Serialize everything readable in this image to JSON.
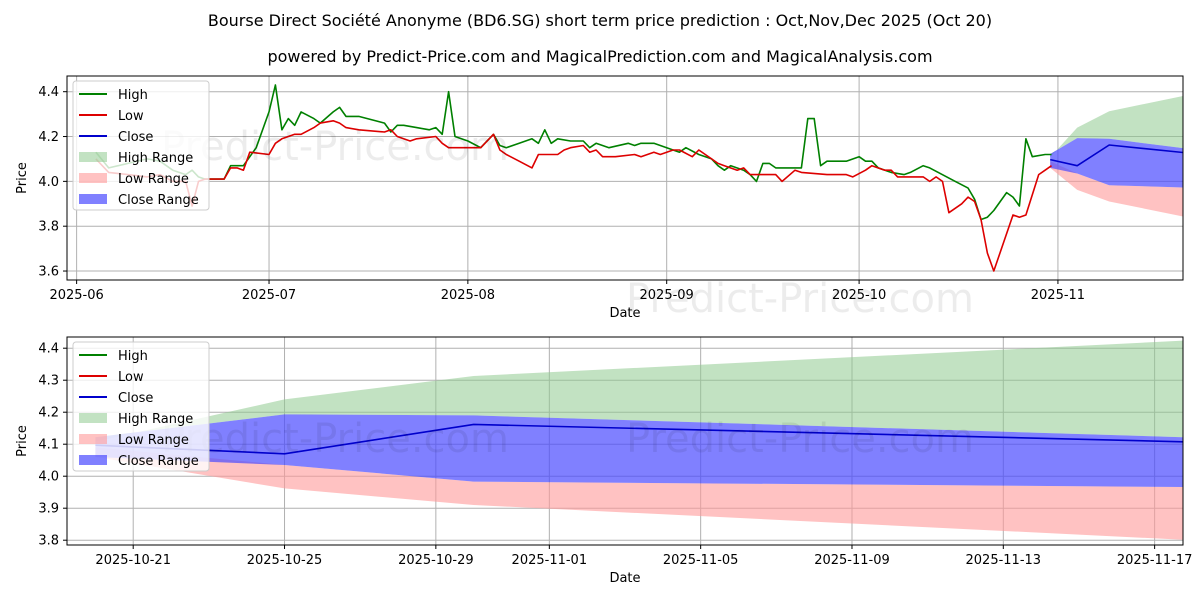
{
  "title": "Bourse Direct Société Anonyme (BD6.SG) short term price prediction : Oct,Nov,Dec 2025 (Oct 20)",
  "subtitle": "powered by Predict-Price.com and MagicalPrediction.com and MagicalAnalysis.com",
  "watermark": "Predict-Price.com",
  "colors": {
    "high": "#008000",
    "low": "#dd0000",
    "close": "#0000cc",
    "high_range": "#8fca8f",
    "low_range": "#ff9999",
    "close_range": "#4a4aff"
  },
  "chart_data": [
    {
      "type": "line",
      "title": "Historical and predicted price",
      "xlabel": "Date",
      "ylabel": "Price",
      "x_unit": "days since 2025-06-01",
      "xlim": [
        -1.5,
        172.5
      ],
      "ylim": [
        3.56,
        4.47
      ],
      "xticks": [
        {
          "value": 0,
          "label": "2025-06"
        },
        {
          "value": 30,
          "label": "2025-07"
        },
        {
          "value": 61,
          "label": "2025-08"
        },
        {
          "value": 92,
          "label": "2025-09"
        },
        {
          "value": 122,
          "label": "2025-10"
        },
        {
          "value": 153,
          "label": "2025-11"
        }
      ],
      "yticks": [
        3.6,
        3.8,
        4.0,
        4.2,
        4.4
      ],
      "legend": [
        "High",
        "Low",
        "Close",
        "High Range",
        "Low Range",
        "Close Range"
      ],
      "series": [
        {
          "name": "High",
          "points": [
            [
              3,
              4.13
            ],
            [
              5,
              4.06
            ],
            [
              8,
              4.08
            ],
            [
              11,
              4.1
            ],
            [
              13,
              4.09
            ],
            [
              15,
              4.05
            ],
            [
              17,
              4.03
            ],
            [
              18,
              4.05
            ],
            [
              19,
              4.02
            ],
            [
              20,
              4.01
            ],
            [
              23,
              4.01
            ],
            [
              24,
              4.07
            ],
            [
              26,
              4.07
            ],
            [
              28,
              4.15
            ],
            [
              30,
              4.31
            ],
            [
              31,
              4.43
            ],
            [
              32,
              4.23
            ],
            [
              33,
              4.28
            ],
            [
              34,
              4.25
            ],
            [
              35,
              4.31
            ],
            [
              37,
              4.28
            ],
            [
              38,
              4.26
            ],
            [
              40,
              4.31
            ],
            [
              41,
              4.33
            ],
            [
              42,
              4.29
            ],
            [
              44,
              4.29
            ],
            [
              48,
              4.26
            ],
            [
              49,
              4.22
            ],
            [
              50,
              4.25
            ],
            [
              51,
              4.25
            ],
            [
              53,
              4.24
            ],
            [
              55,
              4.23
            ],
            [
              56,
              4.24
            ],
            [
              57,
              4.21
            ],
            [
              58,
              4.4
            ],
            [
              59,
              4.2
            ],
            [
              61,
              4.18
            ],
            [
              63,
              4.15
            ],
            [
              65,
              4.21
            ],
            [
              66,
              4.16
            ],
            [
              67,
              4.15
            ],
            [
              69,
              4.17
            ],
            [
              71,
              4.19
            ],
            [
              72,
              4.17
            ],
            [
              73,
              4.23
            ],
            [
              74,
              4.17
            ],
            [
              75,
              4.19
            ],
            [
              77,
              4.18
            ],
            [
              79,
              4.18
            ],
            [
              80,
              4.15
            ],
            [
              81,
              4.17
            ],
            [
              83,
              4.15
            ],
            [
              86,
              4.17
            ],
            [
              87,
              4.16
            ],
            [
              88,
              4.17
            ],
            [
              90,
              4.17
            ],
            [
              94,
              4.13
            ],
            [
              95,
              4.15
            ],
            [
              97,
              4.12
            ],
            [
              99,
              4.1
            ],
            [
              100,
              4.07
            ],
            [
              101,
              4.05
            ],
            [
              102,
              4.07
            ],
            [
              104,
              4.05
            ],
            [
              105,
              4.03
            ],
            [
              106,
              4.0
            ],
            [
              107,
              4.08
            ],
            [
              108,
              4.08
            ],
            [
              109,
              4.06
            ],
            [
              110,
              4.06
            ],
            [
              113,
              4.06
            ],
            [
              114,
              4.28
            ],
            [
              115,
              4.28
            ],
            [
              116,
              4.07
            ],
            [
              117,
              4.09
            ],
            [
              119,
              4.09
            ],
            [
              120,
              4.09
            ],
            [
              122,
              4.11
            ],
            [
              123,
              4.09
            ],
            [
              124,
              4.09
            ],
            [
              125,
              4.06
            ],
            [
              127,
              4.04
            ],
            [
              129,
              4.03
            ],
            [
              130,
              4.04
            ],
            [
              132,
              4.07
            ],
            [
              133,
              4.06
            ],
            [
              137,
              4.0
            ],
            [
              139,
              3.97
            ],
            [
              140,
              3.92
            ],
            [
              141,
              3.83
            ],
            [
              142,
              3.84
            ],
            [
              143,
              3.87
            ],
            [
              145,
              3.95
            ],
            [
              146,
              3.93
            ],
            [
              147,
              3.89
            ],
            [
              148,
              4.19
            ],
            [
              149,
              4.11
            ],
            [
              151,
              4.12
            ],
            [
              152,
              4.12
            ]
          ]
        },
        {
          "name": "Low",
          "points": [
            [
              3,
              4.1
            ],
            [
              5,
              4.04
            ],
            [
              8,
              4.03
            ],
            [
              11,
              4.02
            ],
            [
              13,
              4.03
            ],
            [
              15,
              4.0
            ],
            [
              17,
              4.0
            ],
            [
              18,
              3.89
            ],
            [
              19,
              4.0
            ],
            [
              20,
              4.01
            ],
            [
              23,
              4.01
            ],
            [
              24,
              4.06
            ],
            [
              25,
              4.06
            ],
            [
              26,
              4.05
            ],
            [
              27,
              4.13
            ],
            [
              30,
              4.12
            ],
            [
              31,
              4.17
            ],
            [
              32,
              4.19
            ],
            [
              34,
              4.21
            ],
            [
              35,
              4.21
            ],
            [
              37,
              4.24
            ],
            [
              38,
              4.26
            ],
            [
              40,
              4.27
            ],
            [
              41,
              4.26
            ],
            [
              42,
              4.24
            ],
            [
              44,
              4.23
            ],
            [
              48,
              4.22
            ],
            [
              49,
              4.23
            ],
            [
              50,
              4.2
            ],
            [
              51,
              4.19
            ],
            [
              52,
              4.18
            ],
            [
              53,
              4.19
            ],
            [
              56,
              4.2
            ],
            [
              57,
              4.17
            ],
            [
              58,
              4.15
            ],
            [
              59,
              4.15
            ],
            [
              63,
              4.15
            ],
            [
              65,
              4.21
            ],
            [
              66,
              4.14
            ],
            [
              67,
              4.12
            ],
            [
              69,
              4.09
            ],
            [
              71,
              4.06
            ],
            [
              72,
              4.12
            ],
            [
              74,
              4.12
            ],
            [
              75,
              4.12
            ],
            [
              76,
              4.14
            ],
            [
              77,
              4.15
            ],
            [
              79,
              4.16
            ],
            [
              80,
              4.13
            ],
            [
              81,
              4.14
            ],
            [
              82,
              4.11
            ],
            [
              84,
              4.11
            ],
            [
              87,
              4.12
            ],
            [
              88,
              4.11
            ],
            [
              89,
              4.12
            ],
            [
              90,
              4.13
            ],
            [
              91,
              4.12
            ],
            [
              93,
              4.14
            ],
            [
              94,
              4.14
            ],
            [
              96,
              4.11
            ],
            [
              97,
              4.14
            ],
            [
              99,
              4.1
            ],
            [
              100,
              4.08
            ],
            [
              101,
              4.07
            ],
            [
              103,
              4.05
            ],
            [
              104,
              4.06
            ],
            [
              105,
              4.03
            ],
            [
              108,
              4.03
            ],
            [
              109,
              4.03
            ],
            [
              110,
              4.0
            ],
            [
              112,
              4.05
            ],
            [
              113,
              4.04
            ],
            [
              117,
              4.03
            ],
            [
              120,
              4.03
            ],
            [
              121,
              4.02
            ],
            [
              123,
              4.05
            ],
            [
              124,
              4.07
            ],
            [
              126,
              4.05
            ],
            [
              127,
              4.05
            ],
            [
              128,
              4.02
            ],
            [
              132,
              4.02
            ],
            [
              133,
              4.0
            ],
            [
              134,
              4.02
            ],
            [
              135,
              4.0
            ],
            [
              136,
              3.86
            ],
            [
              138,
              3.9
            ],
            [
              139,
              3.93
            ],
            [
              140,
              3.91
            ],
            [
              141,
              3.83
            ],
            [
              142,
              3.68
            ],
            [
              143,
              3.6
            ],
            [
              146,
              3.85
            ],
            [
              147,
              3.84
            ],
            [
              148,
              3.85
            ],
            [
              150,
              4.03
            ],
            [
              151,
              4.05
            ],
            [
              152,
              4.07
            ]
          ]
        },
        {
          "name": "Close",
          "points": [
            [
              151.8,
              4.097
            ],
            [
              156,
              4.07
            ],
            [
              161,
              4.162
            ],
            [
              180,
              4.107
            ]
          ]
        },
        {
          "name": "High Range",
          "band": [
            [
              151.8,
              4.108,
              4.122
            ],
            [
              156,
              4.24,
              4.193
            ],
            [
              161,
              4.313,
              4.19
            ],
            [
              180,
              4.425,
              4.121
            ]
          ]
        },
        {
          "name": "Low Range",
          "band": [
            [
              151.8,
              4.09,
              4.06
            ],
            [
              156,
              4.035,
              3.962
            ],
            [
              161,
              3.983,
              3.91
            ],
            [
              180,
              3.966,
              3.8
            ]
          ]
        },
        {
          "name": "Close Range",
          "band": [
            [
              151.8,
              4.122,
              4.06
            ],
            [
              156,
              4.193,
              4.035
            ],
            [
              161,
              4.19,
              3.983
            ],
            [
              180,
              4.121,
              3.966
            ]
          ]
        }
      ]
    },
    {
      "type": "line",
      "title": "Prediction detail",
      "xlabel": "Date",
      "ylabel": "Price",
      "x_unit": "days since 2025-10-20",
      "xlim": [
        -0.75,
        28.75
      ],
      "ylim": [
        3.785,
        4.435
      ],
      "xticks": [
        {
          "value": 1,
          "label": "2025-10-21"
        },
        {
          "value": 5,
          "label": "2025-10-25"
        },
        {
          "value": 9,
          "label": "2025-10-29"
        },
        {
          "value": 12,
          "label": "2025-11-01"
        },
        {
          "value": 16,
          "label": "2025-11-05"
        },
        {
          "value": 20,
          "label": "2025-11-09"
        },
        {
          "value": 24,
          "label": "2025-11-13"
        },
        {
          "value": 28,
          "label": "2025-11-17"
        }
      ],
      "yticks": [
        3.8,
        3.9,
        4.0,
        4.1,
        4.2,
        4.3,
        4.4
      ],
      "legend": [
        "High",
        "Low",
        "Close",
        "High Range",
        "Low Range",
        "Close Range"
      ],
      "series": [
        {
          "name": "Close",
          "points": [
            [
              0,
              4.097
            ],
            [
              5,
              4.07
            ],
            [
              10,
              4.162
            ],
            [
              29,
              4.107
            ]
          ]
        },
        {
          "name": "High Range",
          "band": [
            [
              0,
              4.108,
              4.122
            ],
            [
              5,
              4.24,
              4.193
            ],
            [
              10,
              4.313,
              4.19
            ],
            [
              29,
              4.425,
              4.121
            ]
          ]
        },
        {
          "name": "Low Range",
          "band": [
            [
              0,
              4.09,
              4.06
            ],
            [
              5,
              4.035,
              3.962
            ],
            [
              10,
              3.983,
              3.91
            ],
            [
              29,
              3.966,
              3.8
            ]
          ]
        },
        {
          "name": "Close Range",
          "band": [
            [
              0,
              4.122,
              4.06
            ],
            [
              5,
              4.193,
              4.035
            ],
            [
              10,
              4.19,
              3.983
            ],
            [
              29,
              4.121,
              3.966
            ]
          ]
        }
      ]
    }
  ]
}
